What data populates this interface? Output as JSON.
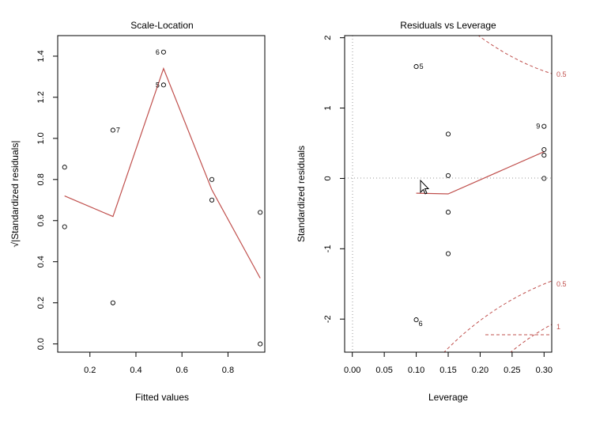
{
  "chart_data": [
    {
      "type": "scatter",
      "title": "Scale-Location",
      "xlabel": "Fitted values",
      "ylabel": "√|Standardized residuals|",
      "xlim": [
        0.06,
        0.96
      ],
      "ylim": [
        -0.04,
        1.5
      ],
      "xticks": [
        0.2,
        0.4,
        0.6,
        0.8
      ],
      "xtick_labels": [
        "0.2",
        "0.4",
        "0.6",
        "0.8"
      ],
      "yticks": [
        0.0,
        0.2,
        0.4,
        0.6,
        0.8,
        1.0,
        1.2,
        1.4
      ],
      "ytick_labels": [
        "0.0",
        "0.2",
        "0.4",
        "0.6",
        "0.8",
        "1.0",
        "1.2",
        "1.4"
      ],
      "points": [
        {
          "x": 0.09,
          "y": 0.86,
          "label": ""
        },
        {
          "x": 0.09,
          "y": 0.57,
          "label": ""
        },
        {
          "x": 0.3,
          "y": 1.04,
          "label": "7"
        },
        {
          "x": 0.3,
          "y": 0.2,
          "label": ""
        },
        {
          "x": 0.52,
          "y": 1.42,
          "label": "6"
        },
        {
          "x": 0.52,
          "y": 1.26,
          "label": "5"
        },
        {
          "x": 0.73,
          "y": 0.8,
          "label": ""
        },
        {
          "x": 0.73,
          "y": 0.7,
          "label": ""
        },
        {
          "x": 0.94,
          "y": 0.64,
          "label": ""
        },
        {
          "x": 0.94,
          "y": 0.0,
          "label": ""
        }
      ],
      "smooth_line": {
        "x": [
          0.09,
          0.3,
          0.52,
          0.73,
          0.94
        ],
        "y": [
          0.72,
          0.62,
          1.34,
          0.75,
          0.32
        ]
      }
    },
    {
      "type": "scatter",
      "title": "Residuals vs Leverage",
      "xlabel": "Leverage",
      "ylabel": "Standardized residuals",
      "xlim": [
        -0.012,
        0.312
      ],
      "ylim": [
        -2.47,
        2.03
      ],
      "xticks": [
        0.0,
        0.05,
        0.1,
        0.15,
        0.2,
        0.25,
        0.3
      ],
      "xtick_labels": [
        "0.00",
        "0.05",
        "0.10",
        "0.15",
        "0.20",
        "0.25",
        "0.30"
      ],
      "yticks": [
        -2,
        -1,
        0,
        1,
        2
      ],
      "ytick_labels": [
        "-2",
        "-1",
        "0",
        "1",
        "2"
      ],
      "points": [
        {
          "x": 0.1,
          "y": 1.59,
          "label": "5"
        },
        {
          "x": 0.1,
          "y": -2.01,
          "label": "6"
        },
        {
          "x": 0.15,
          "y": 0.63,
          "label": ""
        },
        {
          "x": 0.15,
          "y": 0.04,
          "label": ""
        },
        {
          "x": 0.15,
          "y": -0.48,
          "label": ""
        },
        {
          "x": 0.15,
          "y": -1.07,
          "label": ""
        },
        {
          "x": 0.3,
          "y": 0.74,
          "label": "9"
        },
        {
          "x": 0.3,
          "y": 0.41,
          "label": ""
        },
        {
          "x": 0.3,
          "y": 0.33,
          "label": ""
        },
        {
          "x": 0.3,
          "y": 0.0,
          "label": ""
        }
      ],
      "smooth_line": {
        "x": [
          0.1,
          0.15,
          0.3
        ],
        "y": [
          -0.21,
          -0.22,
          0.38
        ]
      },
      "cooks_distance_labels": [
        "0.5",
        "1",
        "0.5",
        "1"
      ]
    }
  ]
}
